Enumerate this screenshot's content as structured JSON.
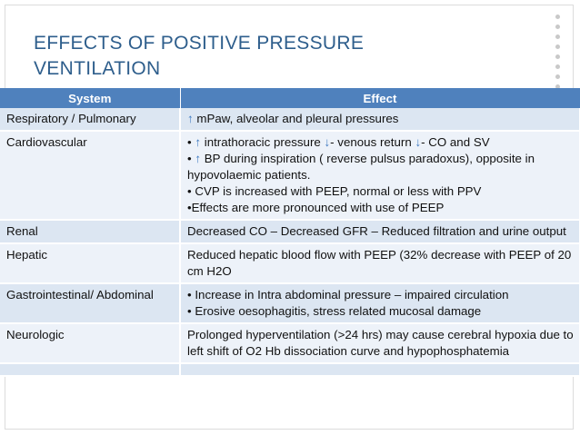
{
  "slide": {
    "title_line1": "Effects of Positive Pressure",
    "title_line2": "Ventilation"
  },
  "table": {
    "headers": [
      "System",
      "Effect"
    ],
    "rows": [
      {
        "system": "Respiratory / Pulmonary",
        "effects": [
          "↑     mPaw, alveolar and pleural pressures"
        ]
      },
      {
        "system": "Cardiovascular",
        "effects": [
          "• ↑ intrathoracic pressure ↓- venous return ↓-      CO and SV",
          "• ↑ BP during inspiration ( reverse pulsus paradoxus), opposite in hypovolaemic  patients.",
          "• CVP is increased with PEEP, normal or less with PPV",
          "•Effects are more pronounced with use of PEEP"
        ]
      },
      {
        "system": "Renal",
        "effects": [
          "Decreased CO – Decreased GFR – Reduced filtration and urine output"
        ]
      },
      {
        "system": "Hepatic",
        "effects": [
          "Reduced  hepatic blood flow with PEEP (32% decrease with PEEP of 20 cm H2O"
        ]
      },
      {
        "system": "Gastrointestinal/ Abdominal",
        "effects": [
          "• Increase in Intra abdominal pressure – impaired circulation",
          "• Erosive oesophagitis, stress related mucosal damage"
        ]
      },
      {
        "system": "Neurologic",
        "effects": [
          "Prolonged hyperventilation (>24 hrs) may cause cerebral hypoxia due to left shift of O2 Hb dissociation curve and hypophosphatemia"
        ]
      },
      {
        "system": "",
        "effects": [
          ""
        ]
      }
    ]
  },
  "colors": {
    "header_bg": "#4f81bd",
    "row_bg": "#dce6f2",
    "row_alt_bg": "#edf2f9",
    "title": "#2e5e8c",
    "arrow": "#3c78c0"
  }
}
